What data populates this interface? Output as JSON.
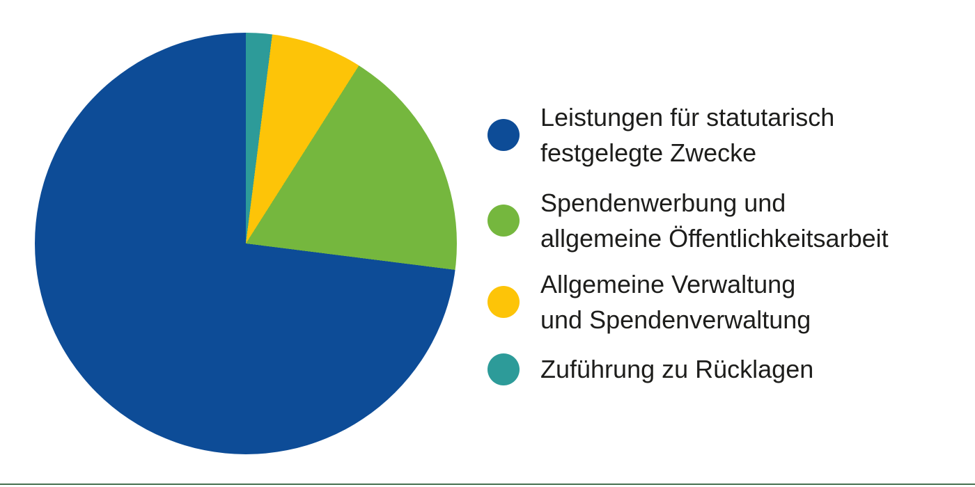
{
  "page": {
    "background_color": "#ffffff",
    "text_color": "#1d1d1b",
    "bottom_rule_color": "#47704e"
  },
  "chart_data": {
    "type": "pie",
    "title": "",
    "unit": "percent_estimated",
    "legend_position": "right",
    "start_angle_deg": 0,
    "direction_from_top": "counterclockwise-in-legend-order",
    "series": [
      {
        "label": "Leistungen für statutarisch festgelegte Zwecke",
        "label_lines": [
          "Leistungen für statutarisch",
          "festgelegte Zwecke"
        ],
        "value": 73,
        "color": "#0d4c97"
      },
      {
        "label": "Spendenwerbung und allgemeine Öffentlichkeitsarbeit",
        "label_lines": [
          "Spendenwerbung und",
          "allgemeine Öffentlichkeitsarbeit"
        ],
        "value": 18,
        "color": "#75b73e"
      },
      {
        "label": "Allgemeine Verwaltung und Spendenverwaltung",
        "label_lines": [
          "Allgemeine Verwaltung",
          "und Spendenverwaltung"
        ],
        "value": 7,
        "color": "#fdc408"
      },
      {
        "label": "Zuführung zu Rücklagen",
        "label_lines": [
          "Zuführung zu Rücklagen"
        ],
        "value": 2,
        "color": "#2d9b99"
      }
    ]
  }
}
